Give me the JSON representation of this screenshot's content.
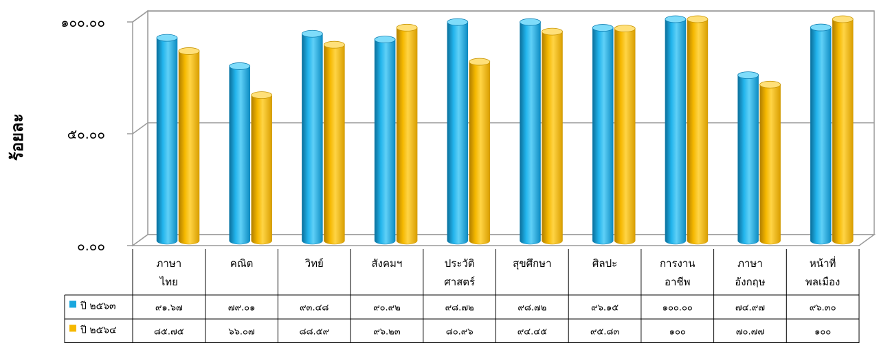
{
  "chart_data": {
    "type": "bar",
    "ylabel": "ร้อยละ",
    "ylim": [
      0,
      100
    ],
    "yticks": [
      "๐.๐๐",
      "๕๐.๐๐",
      "๑๐๐.๐๐"
    ],
    "grid": true,
    "legend": "table-bottom",
    "categories": [
      [
        "ภาษา",
        "ไทย"
      ],
      [
        "คณิต"
      ],
      [
        "วิทย์"
      ],
      [
        "สังคมฯ"
      ],
      [
        "ประวัติ",
        "ศาสตร์"
      ],
      [
        "สุขศึกษา"
      ],
      [
        "ศิลปะ"
      ],
      [
        "การงาน",
        "อาชีพ"
      ],
      [
        "ภาษา",
        "อังกฤษ"
      ],
      [
        "หน้าที่",
        "พลเมือง"
      ]
    ],
    "series": [
      {
        "name": "ปี ๒๕๖๓",
        "color": "#1aa7de",
        "values": [
          91.67,
          79.01,
          93.48,
          90.92,
          98.72,
          98.72,
          96.15,
          100.0,
          74.97,
          96.3
        ],
        "labels": [
          "๙๑.๖๗",
          "๗๙.๐๑",
          "๙๓.๔๘",
          "๙๐.๙๒",
          "๙๘.๗๒",
          "๙๘.๗๒",
          "๙๖.๑๕",
          "๑๐๐.๐๐",
          "๗๔.๙๗",
          "๙๖.๓๐"
        ]
      },
      {
        "name": "ปี ๒๕๖๔",
        "color": "#f5b800",
        "values": [
          85.75,
          66.07,
          88.59,
          96.23,
          80.96,
          94.45,
          95.83,
          100,
          70.77,
          100
        ],
        "labels": [
          "๘๕.๗๕",
          "๖๖.๐๗",
          "๘๘.๕๙",
          "๙๖.๒๓",
          "๘๐.๙๖",
          "๙๔.๔๕",
          "๙๕.๘๓",
          "๑๐๐",
          "๗๐.๗๗",
          "๑๐๐"
        ]
      }
    ]
  }
}
